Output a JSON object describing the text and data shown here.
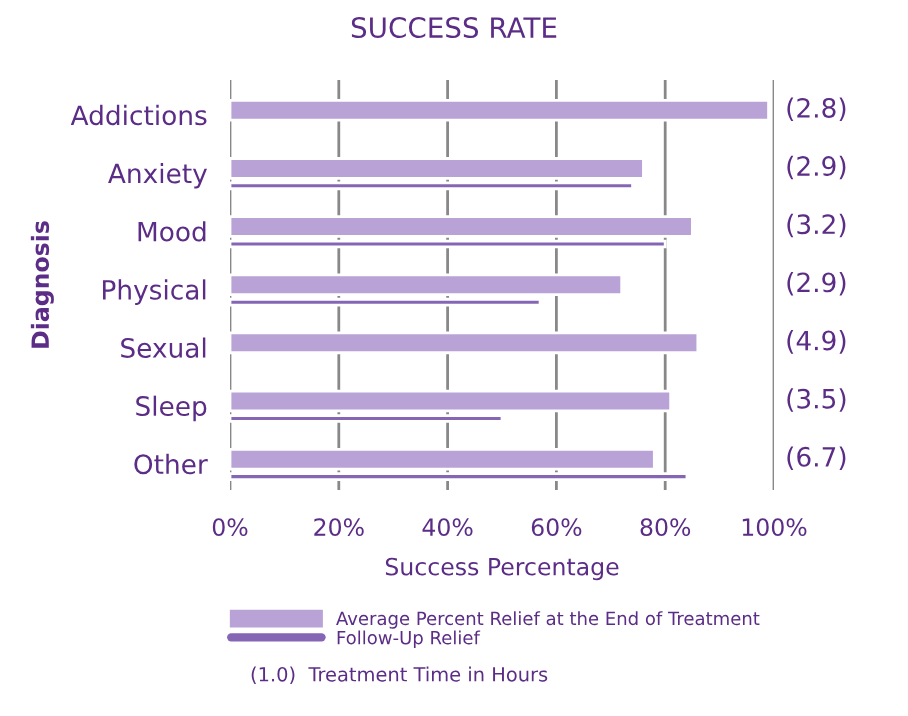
{
  "chart_data": {
    "type": "bar",
    "orientation": "horizontal",
    "title": "SUCCESS RATE",
    "xlabel": "Success Percentage",
    "ylabel": "Diagnosis",
    "categories": [
      "Addictions",
      "Anxiety",
      "Mood",
      "Physical",
      "Sexual",
      "Sleep",
      "Other"
    ],
    "series": [
      {
        "name": "Average Percent Relief at the End of Treatment",
        "color": "#b9a3d6",
        "values": [
          99,
          76,
          85,
          72,
          86,
          81,
          78
        ]
      },
      {
        "name": "Follow-Up Relief",
        "color": "#8566b5",
        "values": [
          null,
          74,
          80,
          57,
          null,
          50,
          84
        ]
      }
    ],
    "xlim": [
      0,
      100
    ],
    "xticks": [
      {
        "value": 0,
        "label": "0%"
      },
      {
        "value": 20,
        "label": "20%"
      },
      {
        "value": 40,
        "label": "40%"
      },
      {
        "value": 60,
        "label": "60%"
      },
      {
        "value": 80,
        "label": "80%"
      },
      {
        "value": 100,
        "label": "100%"
      }
    ],
    "grid": "x",
    "legend": "bottom",
    "annotations": [
      "(2.8)",
      "(2.9)",
      "(3.2)",
      "(2.9)",
      "(4.9)",
      "(3.5)",
      "(6.7)",
      "(1.0)  Treatment Time in Hours"
    ]
  }
}
